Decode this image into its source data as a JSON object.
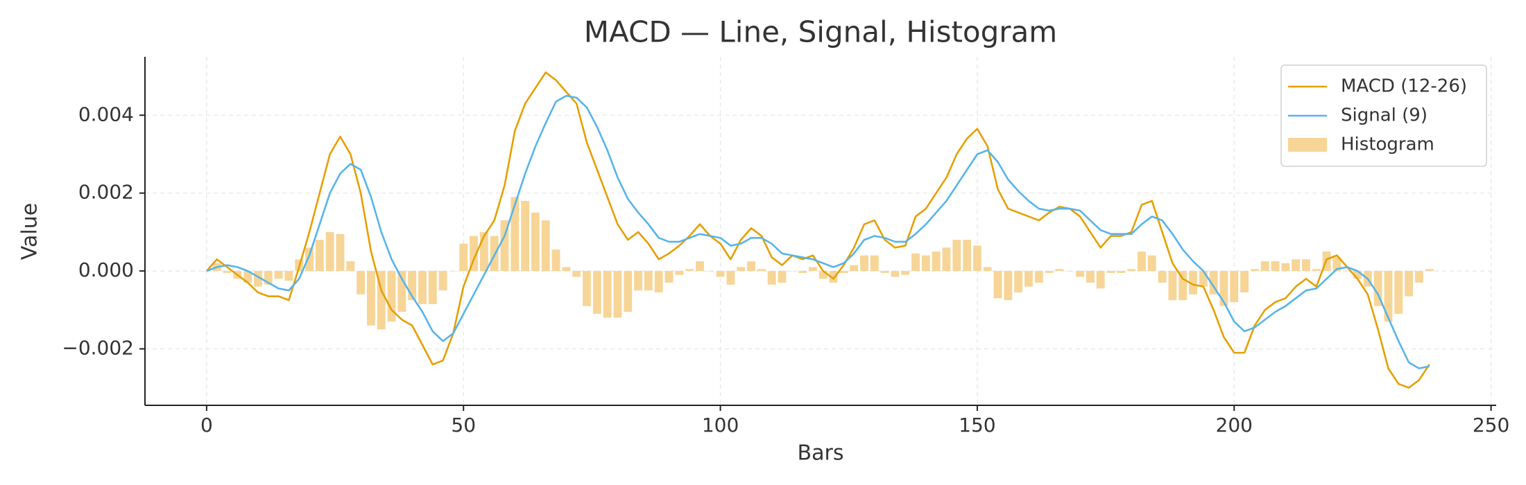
{
  "chart_data": {
    "type": "line",
    "title": "MACD — Line, Signal, Histogram",
    "xlabel": "Bars",
    "ylabel": "Value",
    "grid": true,
    "legend": "upper right",
    "xlim": [
      -12,
      251
    ],
    "ylim": [
      -0.00345,
      0.0055
    ],
    "xticks": [
      0,
      50,
      100,
      150,
      200,
      250
    ],
    "yticks": [
      {
        "value": -0.002,
        "label": "−0.002"
      },
      {
        "value": 0,
        "label": "0.000"
      },
      {
        "value": 0.002,
        "label": "0.002"
      },
      {
        "value": 0.004,
        "label": "0.004"
      }
    ],
    "x": [
      0,
      2,
      4,
      6,
      8,
      10,
      12,
      14,
      16,
      18,
      20,
      22,
      24,
      26,
      28,
      30,
      32,
      34,
      36,
      38,
      40,
      42,
      44,
      46,
      48,
      50,
      52,
      54,
      56,
      58,
      60,
      62,
      64,
      66,
      68,
      70,
      72,
      74,
      76,
      78,
      80,
      82,
      84,
      86,
      88,
      90,
      92,
      94,
      96,
      98,
      100,
      102,
      104,
      106,
      108,
      110,
      112,
      114,
      116,
      118,
      120,
      122,
      124,
      126,
      128,
      130,
      132,
      134,
      136,
      138,
      140,
      142,
      144,
      146,
      148,
      150,
      152,
      154,
      156,
      158,
      160,
      162,
      164,
      166,
      168,
      170,
      172,
      174,
      176,
      178,
      180,
      182,
      184,
      186,
      188,
      190,
      192,
      194,
      196,
      198,
      200,
      202,
      204,
      206,
      208,
      210,
      212,
      214,
      216,
      218,
      220,
      222,
      224,
      226,
      228,
      230,
      232,
      234,
      236,
      238
    ],
    "series": [
      {
        "name": "MACD (12-26)",
        "type": "line",
        "color": "#e69f00",
        "values": [
          0,
          0.0003,
          0.0001,
          -0.0001,
          -0.0003,
          -0.00055,
          -0.00065,
          -0.00065,
          -0.00075,
          0.0001,
          0.001,
          0.002,
          0.003,
          0.00345,
          0.003,
          0.002,
          0.0005,
          -0.0005,
          -0.001,
          -0.00125,
          -0.0014,
          -0.0019,
          -0.0024,
          -0.0023,
          -0.0016,
          -0.0004,
          0.0003,
          0.0009,
          0.0013,
          0.0022,
          0.0036,
          0.0043,
          0.0047,
          0.0051,
          0.0049,
          0.0046,
          0.0043,
          0.0033,
          0.0026,
          0.0019,
          0.0012,
          0.0008,
          0.001,
          0.0007,
          0.0003,
          0.00045,
          0.00065,
          0.0009,
          0.0012,
          0.0009,
          0.0007,
          0.0003,
          0.0008,
          0.0011,
          0.0009,
          0.00035,
          0.00015,
          0.0004,
          0.0003,
          0.0004,
          0,
          -0.0002,
          0.00015,
          0.0006,
          0.0012,
          0.0013,
          0.0008,
          0.0006,
          0.00065,
          0.0014,
          0.0016,
          0.002,
          0.0024,
          0.003,
          0.0034,
          0.00365,
          0.0032,
          0.0021,
          0.0016,
          0.0015,
          0.0014,
          0.0013,
          0.0015,
          0.00165,
          0.0016,
          0.0014,
          0.001,
          0.0006,
          0.0009,
          0.0009,
          0.001,
          0.0017,
          0.0018,
          0.001,
          0.0002,
          -0.0002,
          -0.00035,
          -0.0004,
          -0.001,
          -0.0017,
          -0.0021,
          -0.0021,
          -0.0014,
          -0.001,
          -0.0008,
          -0.0007,
          -0.0004,
          -0.0002,
          -0.0004,
          0.0003,
          0.0004,
          0.0001,
          -0.0002,
          -0.0006,
          -0.0015,
          -0.0025,
          -0.0029,
          -0.003,
          -0.0028,
          -0.0024
        ]
      },
      {
        "name": "Signal (9)",
        "type": "line",
        "color": "#56b4e9",
        "values": [
          0,
          0.0001,
          0.00015,
          0.0001,
          0,
          -0.00015,
          -0.0003,
          -0.00045,
          -0.0005,
          -0.0002,
          0.0004,
          0.0012,
          0.002,
          0.0025,
          0.00275,
          0.0026,
          0.0019,
          0.001,
          0.0003,
          -0.0002,
          -0.00065,
          -0.00105,
          -0.00155,
          -0.0018,
          -0.0016,
          -0.0011,
          -0.0006,
          -0.0001,
          0.0004,
          0.0009,
          0.0017,
          0.0025,
          0.0032,
          0.0038,
          0.00435,
          0.0045,
          0.00445,
          0.0042,
          0.0037,
          0.0031,
          0.0024,
          0.00185,
          0.0015,
          0.0012,
          0.00085,
          0.00075,
          0.00075,
          0.00085,
          0.00095,
          0.0009,
          0.00085,
          0.00065,
          0.0007,
          0.00085,
          0.00085,
          0.0007,
          0.00045,
          0.0004,
          0.00035,
          0.0003,
          0.0002,
          0.0001,
          0.0002,
          0.00045,
          0.0008,
          0.0009,
          0.00085,
          0.00075,
          0.00075,
          0.00095,
          0.0012,
          0.0015,
          0.0018,
          0.0022,
          0.0026,
          0.003,
          0.0031,
          0.0028,
          0.00235,
          0.00205,
          0.0018,
          0.0016,
          0.00155,
          0.0016,
          0.0016,
          0.00155,
          0.0013,
          0.00105,
          0.00095,
          0.00095,
          0.00095,
          0.0012,
          0.0014,
          0.0013,
          0.00095,
          0.00055,
          0.00025,
          0,
          -0.0004,
          -0.0008,
          -0.0013,
          -0.00155,
          -0.00145,
          -0.00125,
          -0.00105,
          -0.0009,
          -0.0007,
          -0.0005,
          -0.00045,
          -0.0002,
          5e-05,
          0.0001,
          0,
          -0.0002,
          -0.0006,
          -0.0012,
          -0.0018,
          -0.00235,
          -0.0025,
          -0.00245
        ]
      },
      {
        "name": "Histogram",
        "type": "bar",
        "color": "#f7d597",
        "values": [
          0,
          0.0002,
          -5e-05,
          -0.0002,
          -0.0003,
          -0.0004,
          -0.00035,
          -0.0002,
          -0.00025,
          0.0003,
          0.0006,
          0.0008,
          0.001,
          0.00095,
          0.00025,
          -0.0006,
          -0.0014,
          -0.0015,
          -0.0013,
          -0.00105,
          -0.00075,
          -0.00085,
          -0.00085,
          -0.0005,
          0,
          0.0007,
          0.0009,
          0.001,
          0.0009,
          0.0013,
          0.0019,
          0.0018,
          0.0015,
          0.0013,
          0.00055,
          0.0001,
          -0.00015,
          -0.0009,
          -0.0011,
          -0.0012,
          -0.0012,
          -0.00105,
          -0.0005,
          -0.0005,
          -0.00055,
          -0.0003,
          -0.0001,
          5e-05,
          0.00025,
          0,
          -0.00015,
          -0.00035,
          0.0001,
          0.00025,
          5e-05,
          -0.00035,
          -0.0003,
          0,
          -5e-05,
          0.0001,
          -0.0002,
          -0.0003,
          -5e-05,
          0.00015,
          0.0004,
          0.0004,
          -5e-05,
          -0.00015,
          -0.0001,
          0.00045,
          0.0004,
          0.0005,
          0.0006,
          0.0008,
          0.0008,
          0.00065,
          0.0001,
          -0.0007,
          -0.00075,
          -0.00055,
          -0.0004,
          -0.0003,
          -5e-05,
          5e-05,
          0,
          -0.00015,
          -0.0003,
          -0.00045,
          -5e-05,
          -5e-05,
          5e-05,
          0.0005,
          0.0004,
          -0.0003,
          -0.00075,
          -0.00075,
          -0.0006,
          -0.0004,
          -0.0006,
          -0.0009,
          -0.0008,
          -0.00055,
          5e-05,
          0.00025,
          0.00025,
          0.0002,
          0.0003,
          0.0003,
          5e-05,
          0.0005,
          0.00035,
          0,
          -0.0002,
          -0.0004,
          -0.0009,
          -0.0013,
          -0.0011,
          -0.00065,
          -0.0003,
          5e-05
        ]
      }
    ]
  }
}
